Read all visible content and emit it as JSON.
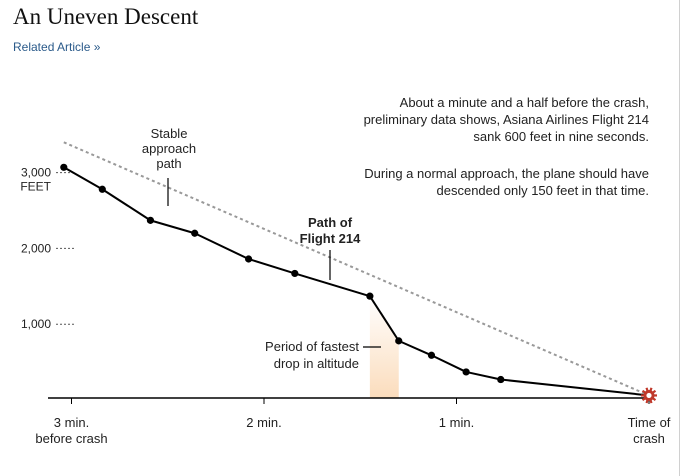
{
  "header": {
    "title": "An Uneven Descent",
    "related_link": "Related Article »"
  },
  "chart_data": {
    "type": "line",
    "title": "An Uneven Descent",
    "xlabel": "",
    "ylabel": "",
    "x_unit": "minutes before crash",
    "xlim": [
      3,
      0
    ],
    "ylim": [
      0,
      3000
    ],
    "x_ticks": [
      {
        "value": 3,
        "lines": [
          "3 min.",
          "before crash"
        ]
      },
      {
        "value": 2,
        "lines": [
          "2 min."
        ]
      },
      {
        "value": 1,
        "lines": [
          "1 min."
        ]
      },
      {
        "value": 0,
        "lines": [
          "Time of",
          "crash"
        ]
      }
    ],
    "y_ticks": [
      {
        "value": 3000,
        "lines": [
          "3,000",
          "FEET"
        ]
      },
      {
        "value": 2000,
        "lines": [
          "2,000"
        ]
      },
      {
        "value": 1000,
        "lines": [
          "1,000"
        ]
      }
    ],
    "series": [
      {
        "name": "Path of Flight 214",
        "style": "solid",
        "color": "#000000",
        "x": [
          3.04,
          2.84,
          2.59,
          2.36,
          2.08,
          1.84,
          1.45,
          1.3,
          1.13,
          0.95,
          0.77,
          0.0
        ],
        "y": [
          3070,
          2780,
          2370,
          2200,
          1860,
          1670,
          1370,
          780,
          590,
          370,
          270,
          60
        ]
      },
      {
        "name": "Stable approach path",
        "style": "dashed",
        "color": "#999999",
        "x": [
          3.04,
          0.0
        ],
        "y": [
          3400,
          60
        ]
      }
    ],
    "crash_marker": {
      "x": 0.0,
      "y": 60,
      "color": "#c0392b"
    },
    "highlight": {
      "label": [
        "Period of fastest",
        "drop in altitude"
      ],
      "x_start": 1.45,
      "x_end": 1.3,
      "color": "#f6b26b"
    },
    "annotations": {
      "stable_path": [
        "Stable",
        "approach",
        "path"
      ],
      "flight_path": [
        "Path of",
        "Flight 214"
      ],
      "note_1": [
        "About a minute and a half before the crash,",
        "preliminary data shows, Asiana Airlines Flight 214",
        "sank 600 feet in nine seconds."
      ],
      "note_2": [
        "During a normal approach, the plane should have",
        "descended only 150 feet in that time."
      ]
    }
  }
}
